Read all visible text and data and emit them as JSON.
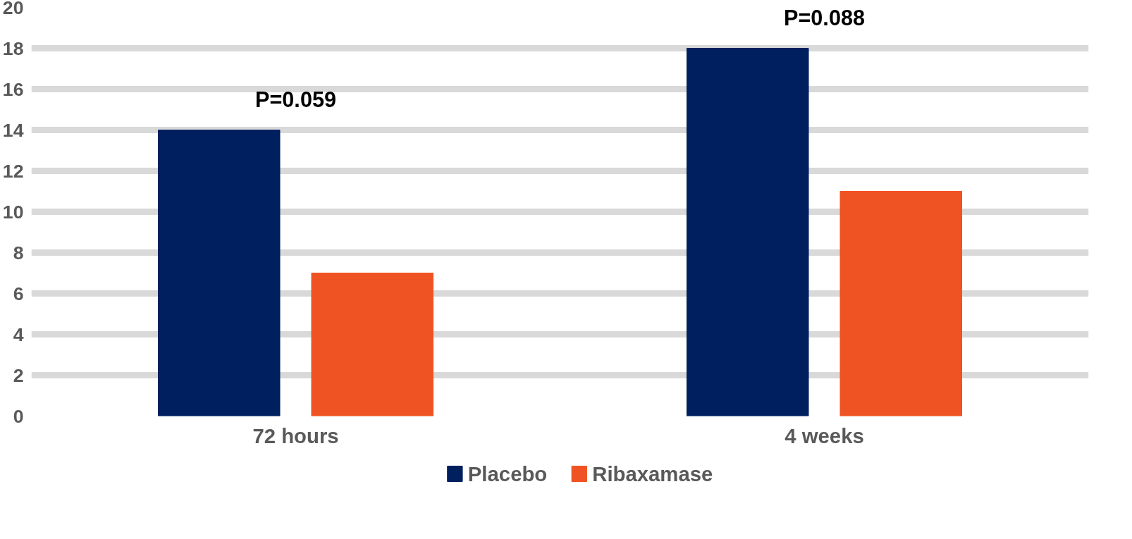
{
  "chart_data": {
    "type": "bar",
    "categories": [
      "72 hours",
      "4 weeks"
    ],
    "series": [
      {
        "name": "Placebo",
        "color": "#001f5f",
        "values": [
          14,
          18
        ]
      },
      {
        "name": "Ribaxamase",
        "color": "#f05323",
        "values": [
          7,
          11
        ]
      }
    ],
    "ylim": [
      0,
      20
    ],
    "yticks": [
      0,
      2,
      4,
      6,
      8,
      10,
      12,
      14,
      16,
      18,
      20
    ],
    "grid": "y",
    "legend": "bottom",
    "annotations": [
      "P=0.059",
      "P=0.088"
    ]
  }
}
